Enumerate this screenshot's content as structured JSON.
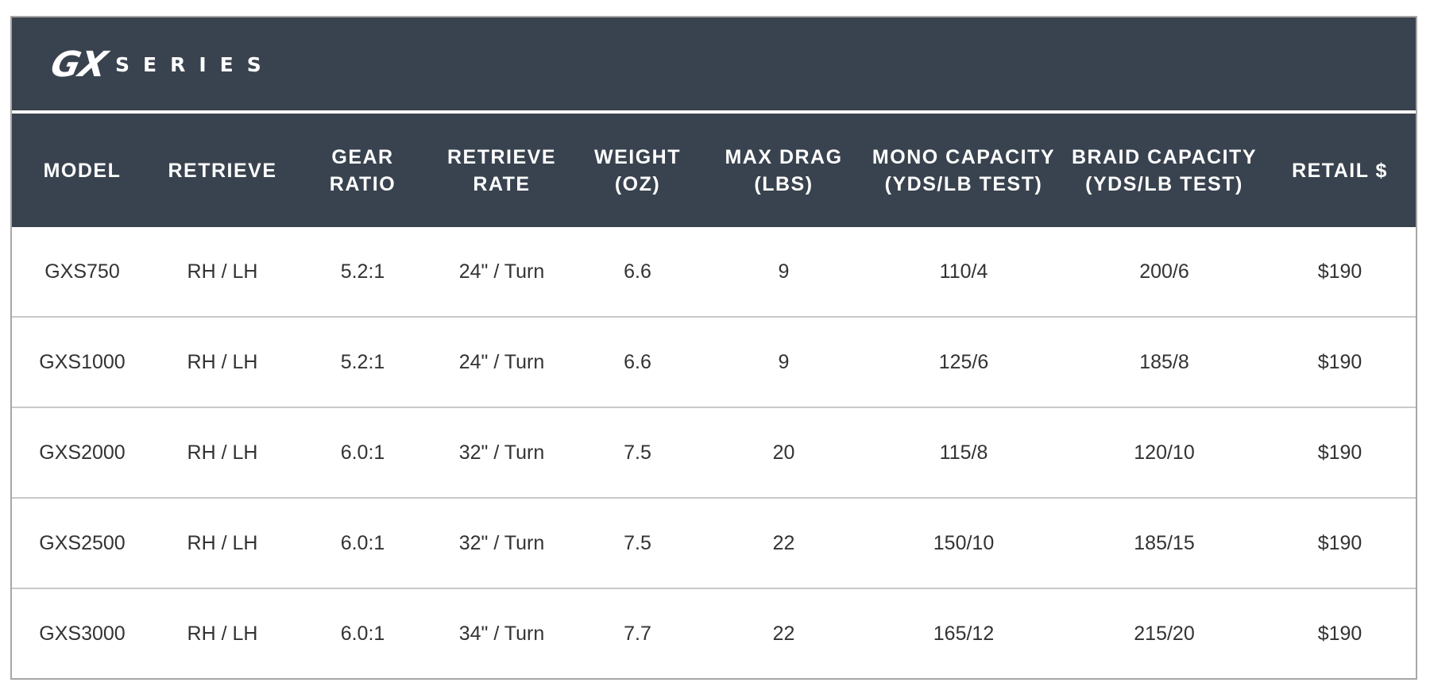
{
  "title": {
    "logo_text": "GX",
    "series_label": "SERIES"
  },
  "colors": {
    "header_bg": "#39434f",
    "text": "#333333",
    "divider": "#c9c9c9"
  },
  "columns": [
    "MODEL",
    "RETRIEVE",
    "GEAR\nRATIO",
    "RETRIEVE\nRATE",
    "WEIGHT\n(OZ)",
    "MAX DRAG\n(LBS)",
    "MONO CAPACITY\n(YDS/LB TEST)",
    "BRAID CAPACITY\n(YDS/LB TEST)",
    "RETAIL $"
  ],
  "rows": [
    [
      "GXS750",
      "RH / LH",
      "5.2:1",
      "24\" / Turn",
      "6.6",
      "9",
      "110/4",
      "200/6",
      "$190"
    ],
    [
      "GXS1000",
      "RH / LH",
      "5.2:1",
      "24\" / Turn",
      "6.6",
      "9",
      "125/6",
      "185/8",
      "$190"
    ],
    [
      "GXS2000",
      "RH / LH",
      "6.0:1",
      "32\" / Turn",
      "7.5",
      "20",
      "115/8",
      "120/10",
      "$190"
    ],
    [
      "GXS2500",
      "RH / LH",
      "6.0:1",
      "32\" / Turn",
      "7.5",
      "22",
      "150/10",
      "185/15",
      "$190"
    ],
    [
      "GXS3000",
      "RH / LH",
      "6.0:1",
      "34\" / Turn",
      "7.7",
      "22",
      "165/12",
      "215/20",
      "$190"
    ]
  ]
}
